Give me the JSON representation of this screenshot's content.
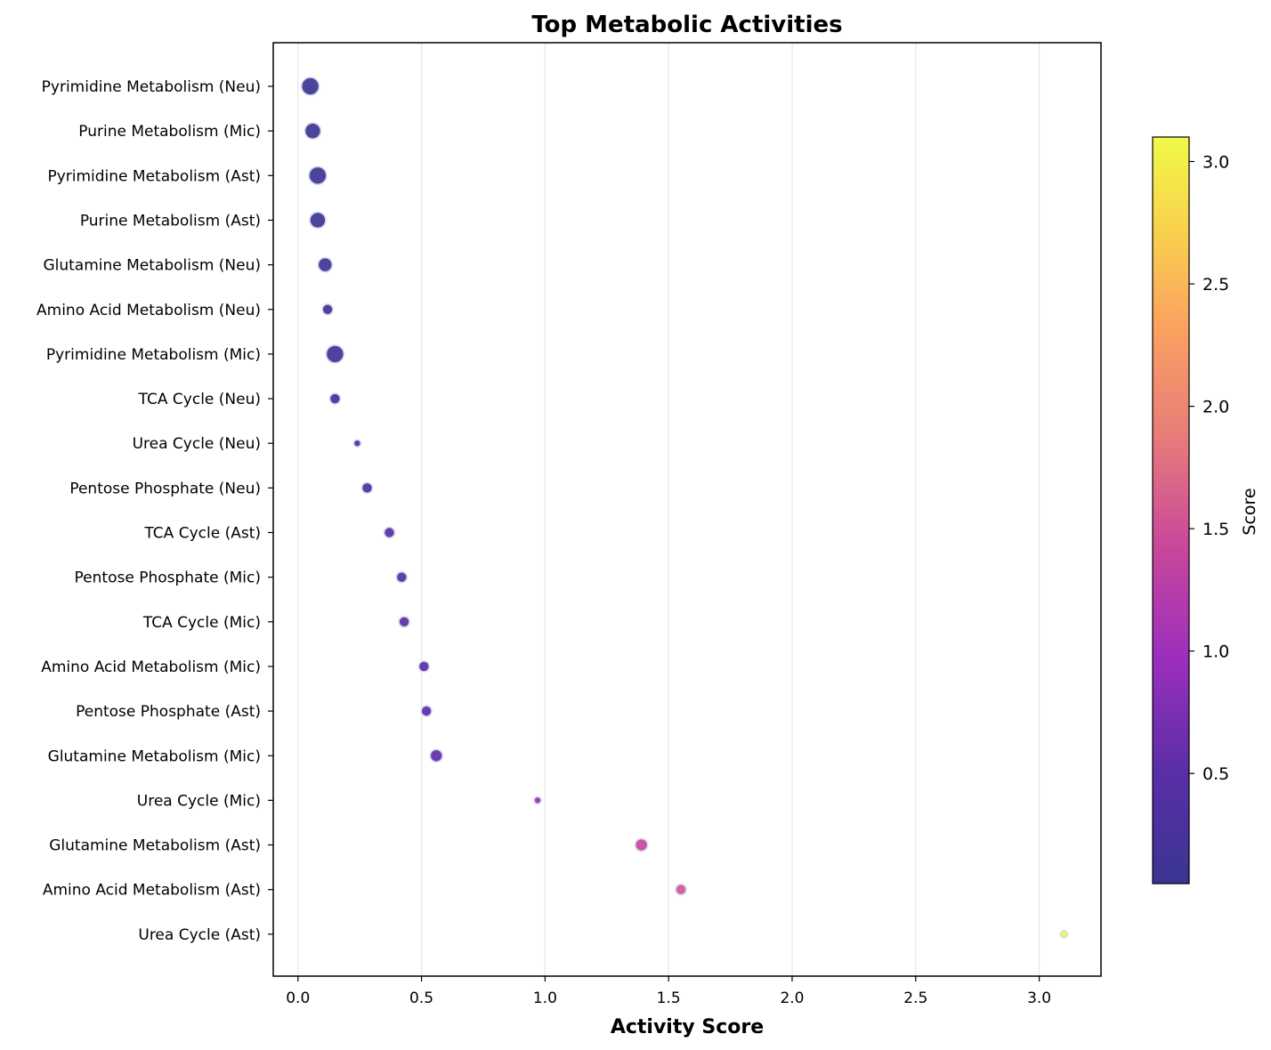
{
  "chart_data": {
    "type": "scatter",
    "title": "Top Metabolic Activities",
    "xlabel": "Activity Score",
    "ylabel": "",
    "xlim": [
      -0.1,
      3.25
    ],
    "xticks": [
      0.0,
      0.5,
      1.0,
      1.5,
      2.0,
      2.5,
      3.0
    ],
    "xtick_labels": [
      "0.0",
      "0.5",
      "1.0",
      "1.5",
      "2.0",
      "2.5",
      "3.0"
    ],
    "grid": "vertical",
    "colormap": "plasma",
    "colorbar": {
      "label": "Score",
      "range": [
        0.05,
        3.1
      ],
      "ticks": [
        0.5,
        1.0,
        1.5,
        2.0,
        2.5,
        3.0
      ],
      "tick_labels": [
        "0.5",
        "1.0",
        "1.5",
        "2.0",
        "2.5",
        "3.0"
      ]
    },
    "categories": [
      "Pyrimidine Metabolism (Neu)",
      "Purine Metabolism (Mic)",
      "Pyrimidine Metabolism (Ast)",
      "Purine Metabolism (Ast)",
      "Glutamine Metabolism (Neu)",
      "Amino Acid Metabolism (Neu)",
      "Pyrimidine Metabolism (Mic)",
      "TCA Cycle (Neu)",
      "Urea Cycle (Neu)",
      "Pentose Phosphate (Neu)",
      "TCA Cycle (Ast)",
      "Pentose Phosphate (Mic)",
      "TCA Cycle (Mic)",
      "Amino Acid Metabolism (Mic)",
      "Pentose Phosphate (Ast)",
      "Glutamine Metabolism (Mic)",
      "Urea Cycle (Mic)",
      "Glutamine Metabolism (Ast)",
      "Amino Acid Metabolism (Ast)",
      "Urea Cycle (Ast)"
    ],
    "values": [
      0.05,
      0.06,
      0.08,
      0.08,
      0.11,
      0.12,
      0.15,
      0.15,
      0.24,
      0.28,
      0.37,
      0.42,
      0.43,
      0.51,
      0.52,
      0.56,
      0.97,
      1.39,
      1.55,
      3.1
    ],
    "marker_sizes": [
      10,
      9,
      10,
      9,
      8,
      6,
      10,
      6,
      4,
      6,
      6,
      6,
      6,
      6,
      6,
      7,
      4,
      7,
      6,
      4
    ]
  }
}
